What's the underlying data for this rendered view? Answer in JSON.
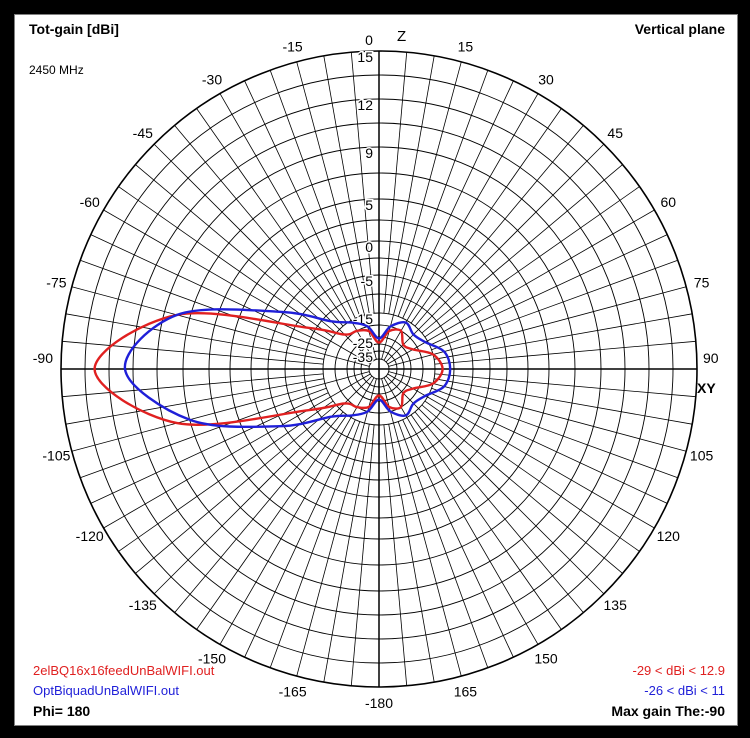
{
  "title": "Tot-gain [dBi]",
  "frequency": "2450 MHz",
  "plane": "Vertical plane",
  "phi": "Phi= 180",
  "max_gain": "Max gain The:-90",
  "axis_z": "Z",
  "axis_xy": "XY",
  "colors": {
    "series1": "#e02020",
    "series2": "#1f1fd8",
    "grid": "#000000"
  },
  "chart_data": {
    "type": "line",
    "coordinate_system": "polar",
    "angular_unit": "degrees",
    "zero_direction": "top",
    "angle_ticks": [
      0,
      15,
      30,
      45,
      60,
      75,
      90,
      105,
      120,
      135,
      150,
      165,
      180,
      -165,
      -150,
      -135,
      -120,
      -105,
      -90,
      -75,
      -60,
      -45,
      -30,
      -15
    ],
    "angle_tick_labels": [
      "0",
      "15",
      "30",
      "45",
      "60",
      "75",
      "90",
      "105",
      "120",
      "135",
      "150",
      "165",
      "-180",
      "-165",
      "-150",
      "-135",
      "-120",
      "-105",
      "-90",
      "-75",
      "-60",
      "-45",
      "-30",
      "-15"
    ],
    "radial_ticks": [
      15,
      12,
      9,
      5,
      0,
      -5,
      -15,
      -25,
      -35
    ],
    "radial_tick_labels": [
      "15",
      "12",
      "9",
      "5",
      "0",
      "-5",
      "-15",
      "-25",
      "-35"
    ],
    "series": [
      {
        "name": "2elBQ16x16feedUnBalWIFI.out",
        "range_label": "-29 < dBi < 12.9",
        "theta": [
          0,
          15,
          30,
          45,
          60,
          75,
          90,
          105,
          120,
          135,
          150,
          165,
          180,
          -165,
          -150,
          -135,
          -120,
          -105,
          -90,
          -75,
          -60,
          -45,
          -30,
          -15
        ],
        "gain_dbi": [
          -29,
          -22,
          -20,
          -24,
          -22,
          -15,
          -13,
          -15,
          -22,
          -24,
          -20,
          -22,
          -29,
          -22,
          -20,
          -18,
          -8,
          8,
          12.9,
          8,
          -8,
          -18,
          -20,
          -22
        ]
      },
      {
        "name": "OptBiquadUnBalWIFI.out",
        "range_label": "-26 < dBi < 11",
        "theta": [
          0,
          15,
          30,
          45,
          60,
          75,
          90,
          105,
          120,
          135,
          150,
          165,
          180,
          -165,
          -150,
          -135,
          -120,
          -105,
          -90,
          -75,
          -60,
          -45,
          -30,
          -15
        ],
        "gain_dbi": [
          -26,
          -20,
          -16,
          -18,
          -16,
          -12,
          -11,
          -12,
          -16,
          -18,
          -16,
          -20,
          -26,
          -20,
          -16,
          -12,
          -2,
          7,
          11,
          8,
          -2,
          -12,
          -16,
          -20
        ]
      }
    ]
  }
}
